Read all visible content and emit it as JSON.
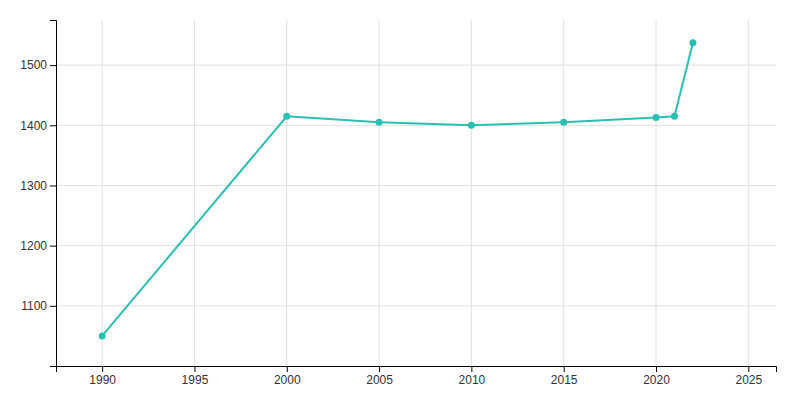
{
  "chart_data": {
    "type": "line",
    "x": [
      1990,
      2000,
      2005,
      2010,
      2015,
      2020,
      2021,
      2022
    ],
    "values": [
      1050,
      1415,
      1405,
      1400,
      1405,
      1413,
      1415,
      1537
    ],
    "color": "#2bbfb3",
    "marker": "circle",
    "xlim": [
      1987.5,
      2026.5
    ],
    "ylim": [
      1000,
      1575
    ],
    "xticks": [
      1990,
      1995,
      2000,
      2005,
      2010,
      2015,
      2020,
      2025
    ],
    "yticks": [
      1100,
      1200,
      1300,
      1400,
      1500
    ],
    "grid": true
  }
}
